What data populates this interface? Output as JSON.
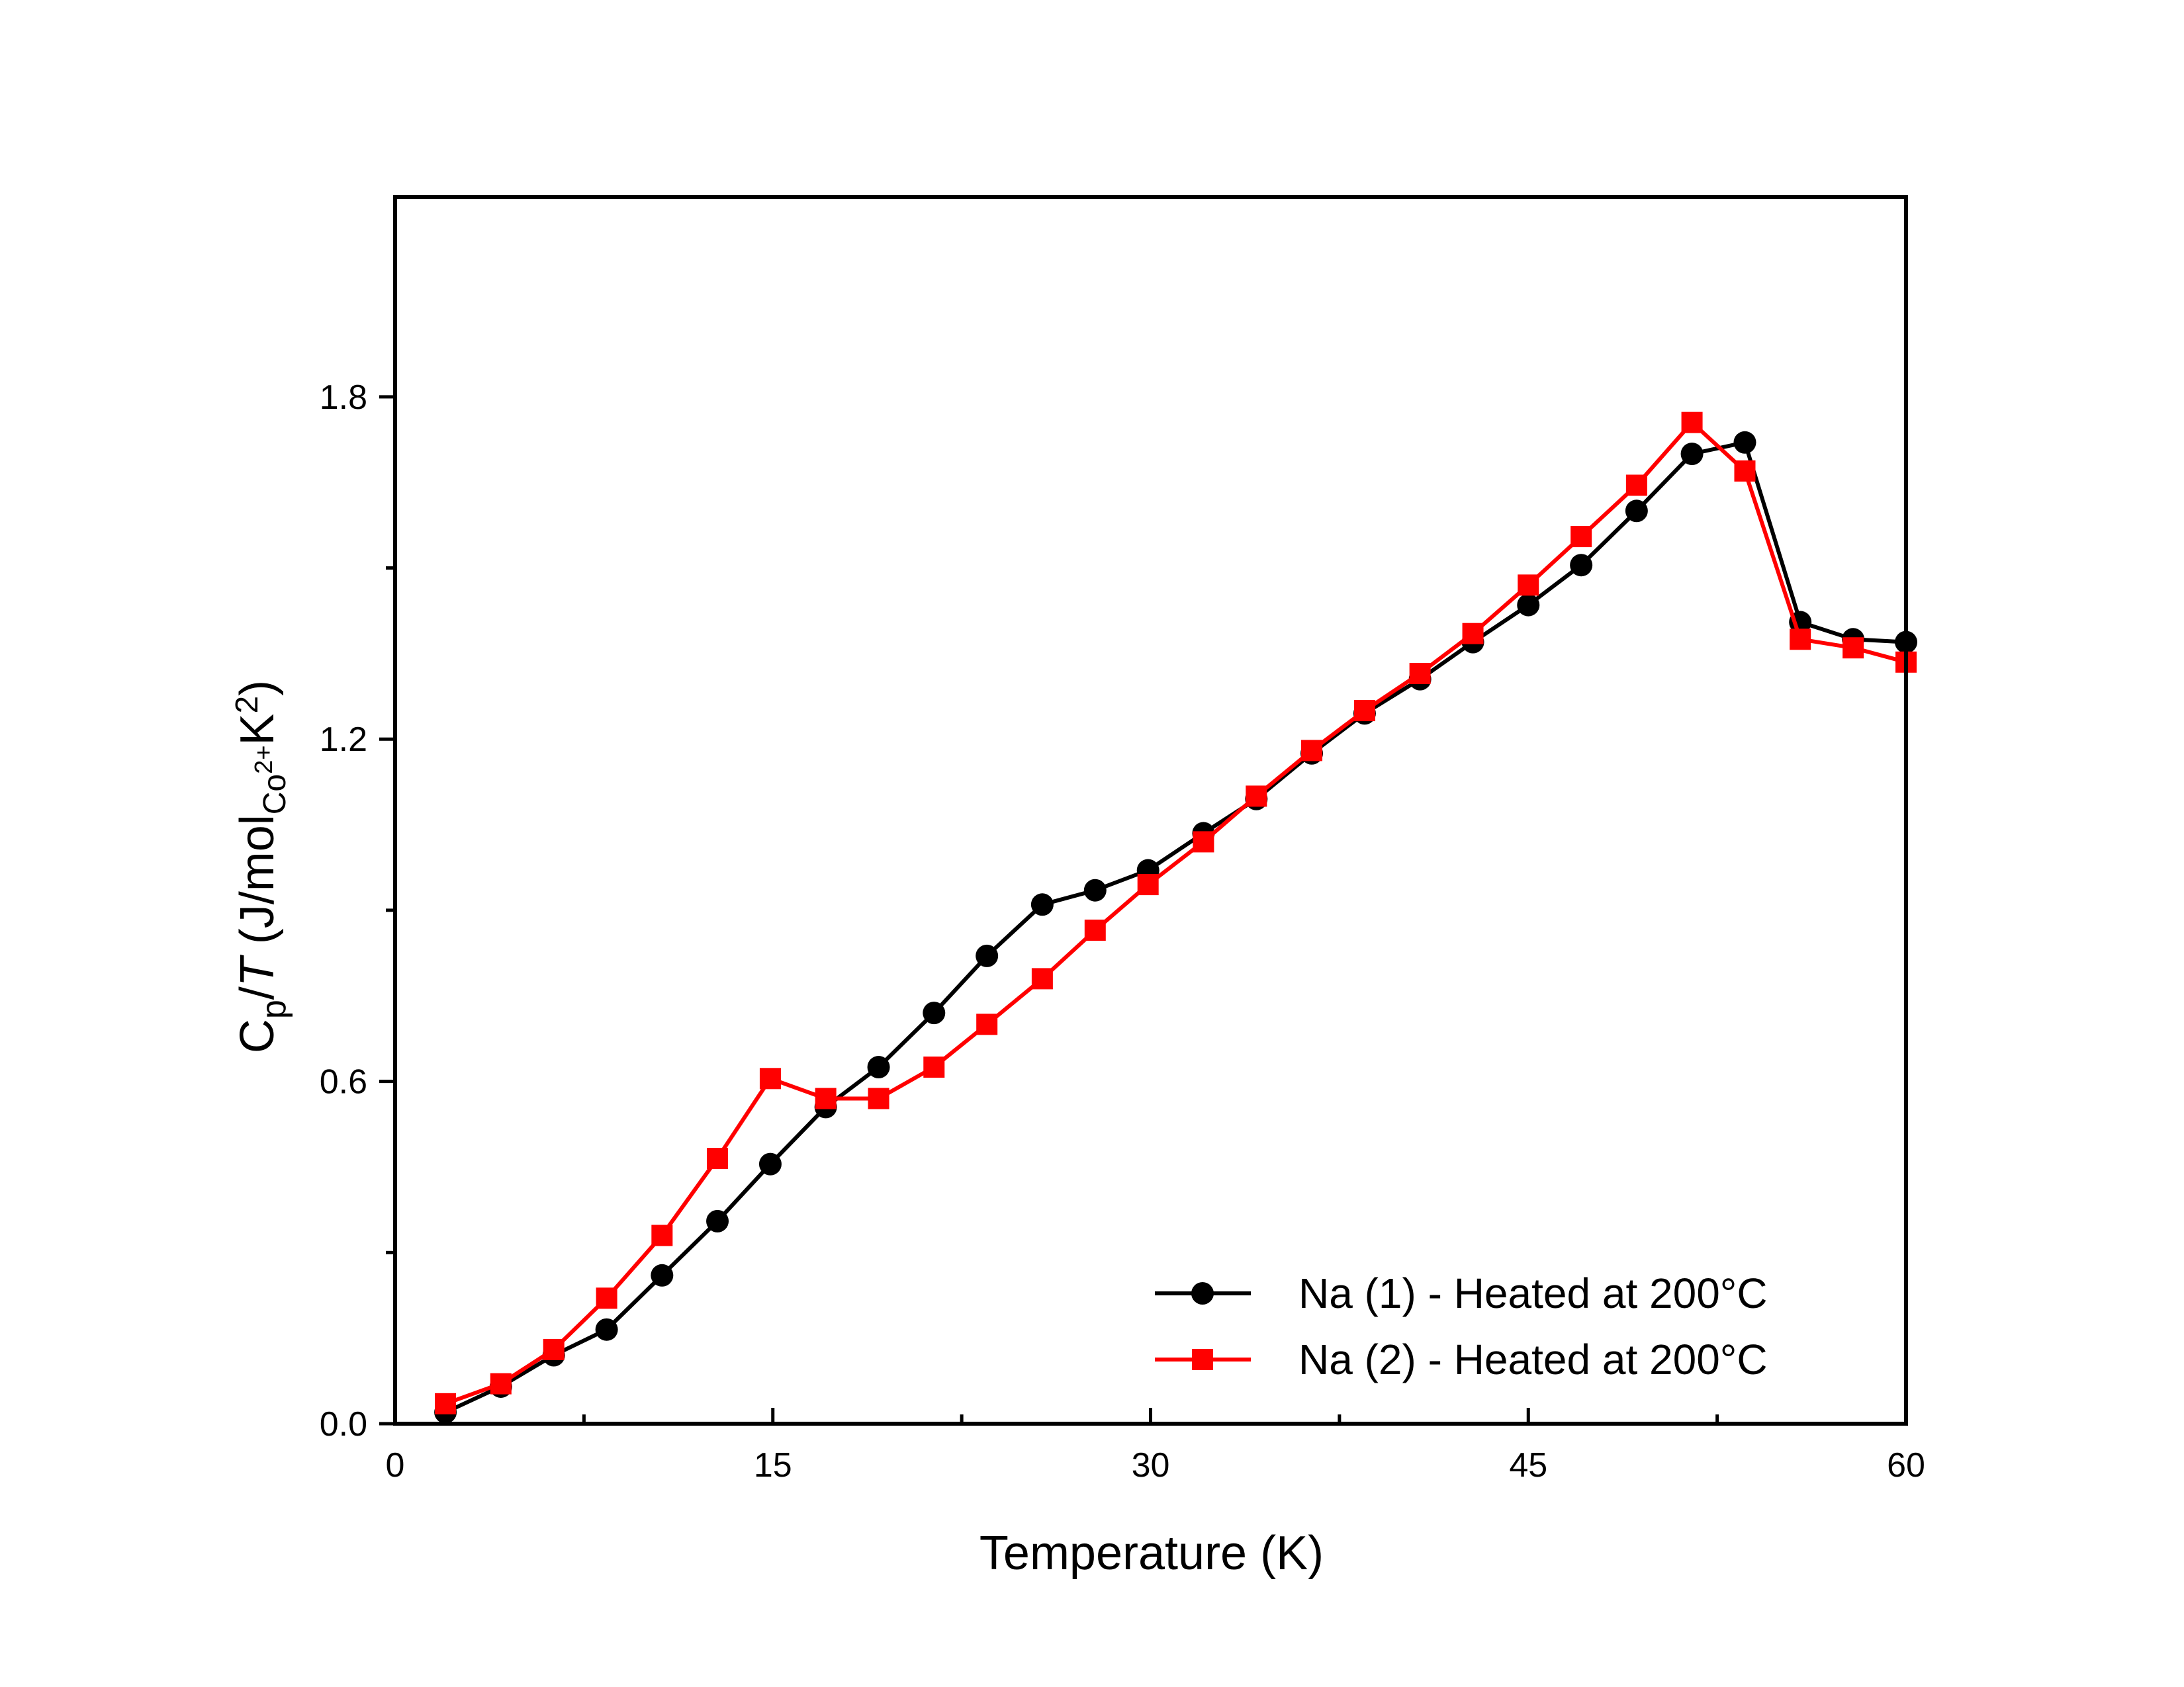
{
  "chart_data": {
    "type": "line",
    "title": "",
    "xlabel": "Temperature (K)",
    "ylabel": {
      "main_1": "C",
      "sub_1": "p",
      "main_2": "/",
      "italic": "T",
      "main_3": " (J/mol",
      "sub_2": "Co",
      "sub_sup": "2+",
      "main_4": "K",
      "sup": "2",
      "main_5": ")"
    },
    "xlim": [
      0,
      60
    ],
    "ylim": [
      0,
      2.15
    ],
    "x_ticks": [
      0,
      15,
      30,
      45,
      60
    ],
    "x_tick_labels": [
      "0",
      "15",
      "30",
      "45",
      "60"
    ],
    "y_ticks": [
      0.0,
      0.6,
      1.2,
      1.8
    ],
    "y_tick_labels": [
      "0.0",
      "0.6",
      "1.2",
      "1.8"
    ],
    "x_minor_ticks": [
      7.5,
      22.5,
      37.5,
      52.5
    ],
    "y_minor_ticks": [
      0.3,
      0.9,
      1.5
    ],
    "grid": false,
    "legend_position": "bottom-right",
    "series": [
      {
        "name": "Na (1) - Heated at 200°C",
        "color": "#000000",
        "marker": "circle",
        "x": [
          2.0,
          4.2,
          6.3,
          8.4,
          10.6,
          12.8,
          14.9,
          17.1,
          19.2,
          21.4,
          23.5,
          25.7,
          27.8,
          29.9,
          32.1,
          34.2,
          36.4,
          38.5,
          40.7,
          42.8,
          45.0,
          47.1,
          49.3,
          51.5,
          53.6,
          55.8,
          57.9,
          60.0
        ],
        "y": [
          0.02,
          0.065,
          0.12,
          0.165,
          0.26,
          0.355,
          0.455,
          0.555,
          0.625,
          0.72,
          0.82,
          0.91,
          0.935,
          0.97,
          1.035,
          1.095,
          1.175,
          1.245,
          1.305,
          1.37,
          1.435,
          1.505,
          1.6,
          1.7,
          1.72,
          1.405,
          1.375,
          1.37
        ]
      },
      {
        "name": "Na (2) - Heated at 200°C",
        "color": "#ff0000",
        "marker": "square",
        "x": [
          2.0,
          4.2,
          6.3,
          8.4,
          10.6,
          12.8,
          14.9,
          17.1,
          19.2,
          21.4,
          23.5,
          25.7,
          27.8,
          29.9,
          32.1,
          34.2,
          36.4,
          38.5,
          40.7,
          42.8,
          45.0,
          47.1,
          49.3,
          51.5,
          53.6,
          55.8,
          57.9,
          60.0
        ],
        "y": [
          0.035,
          0.07,
          0.13,
          0.22,
          0.33,
          0.465,
          0.605,
          0.57,
          0.57,
          0.625,
          0.7,
          0.78,
          0.865,
          0.945,
          1.02,
          1.1,
          1.18,
          1.25,
          1.315,
          1.385,
          1.47,
          1.555,
          1.645,
          1.755,
          1.67,
          1.375,
          1.36,
          1.335
        ]
      }
    ]
  }
}
